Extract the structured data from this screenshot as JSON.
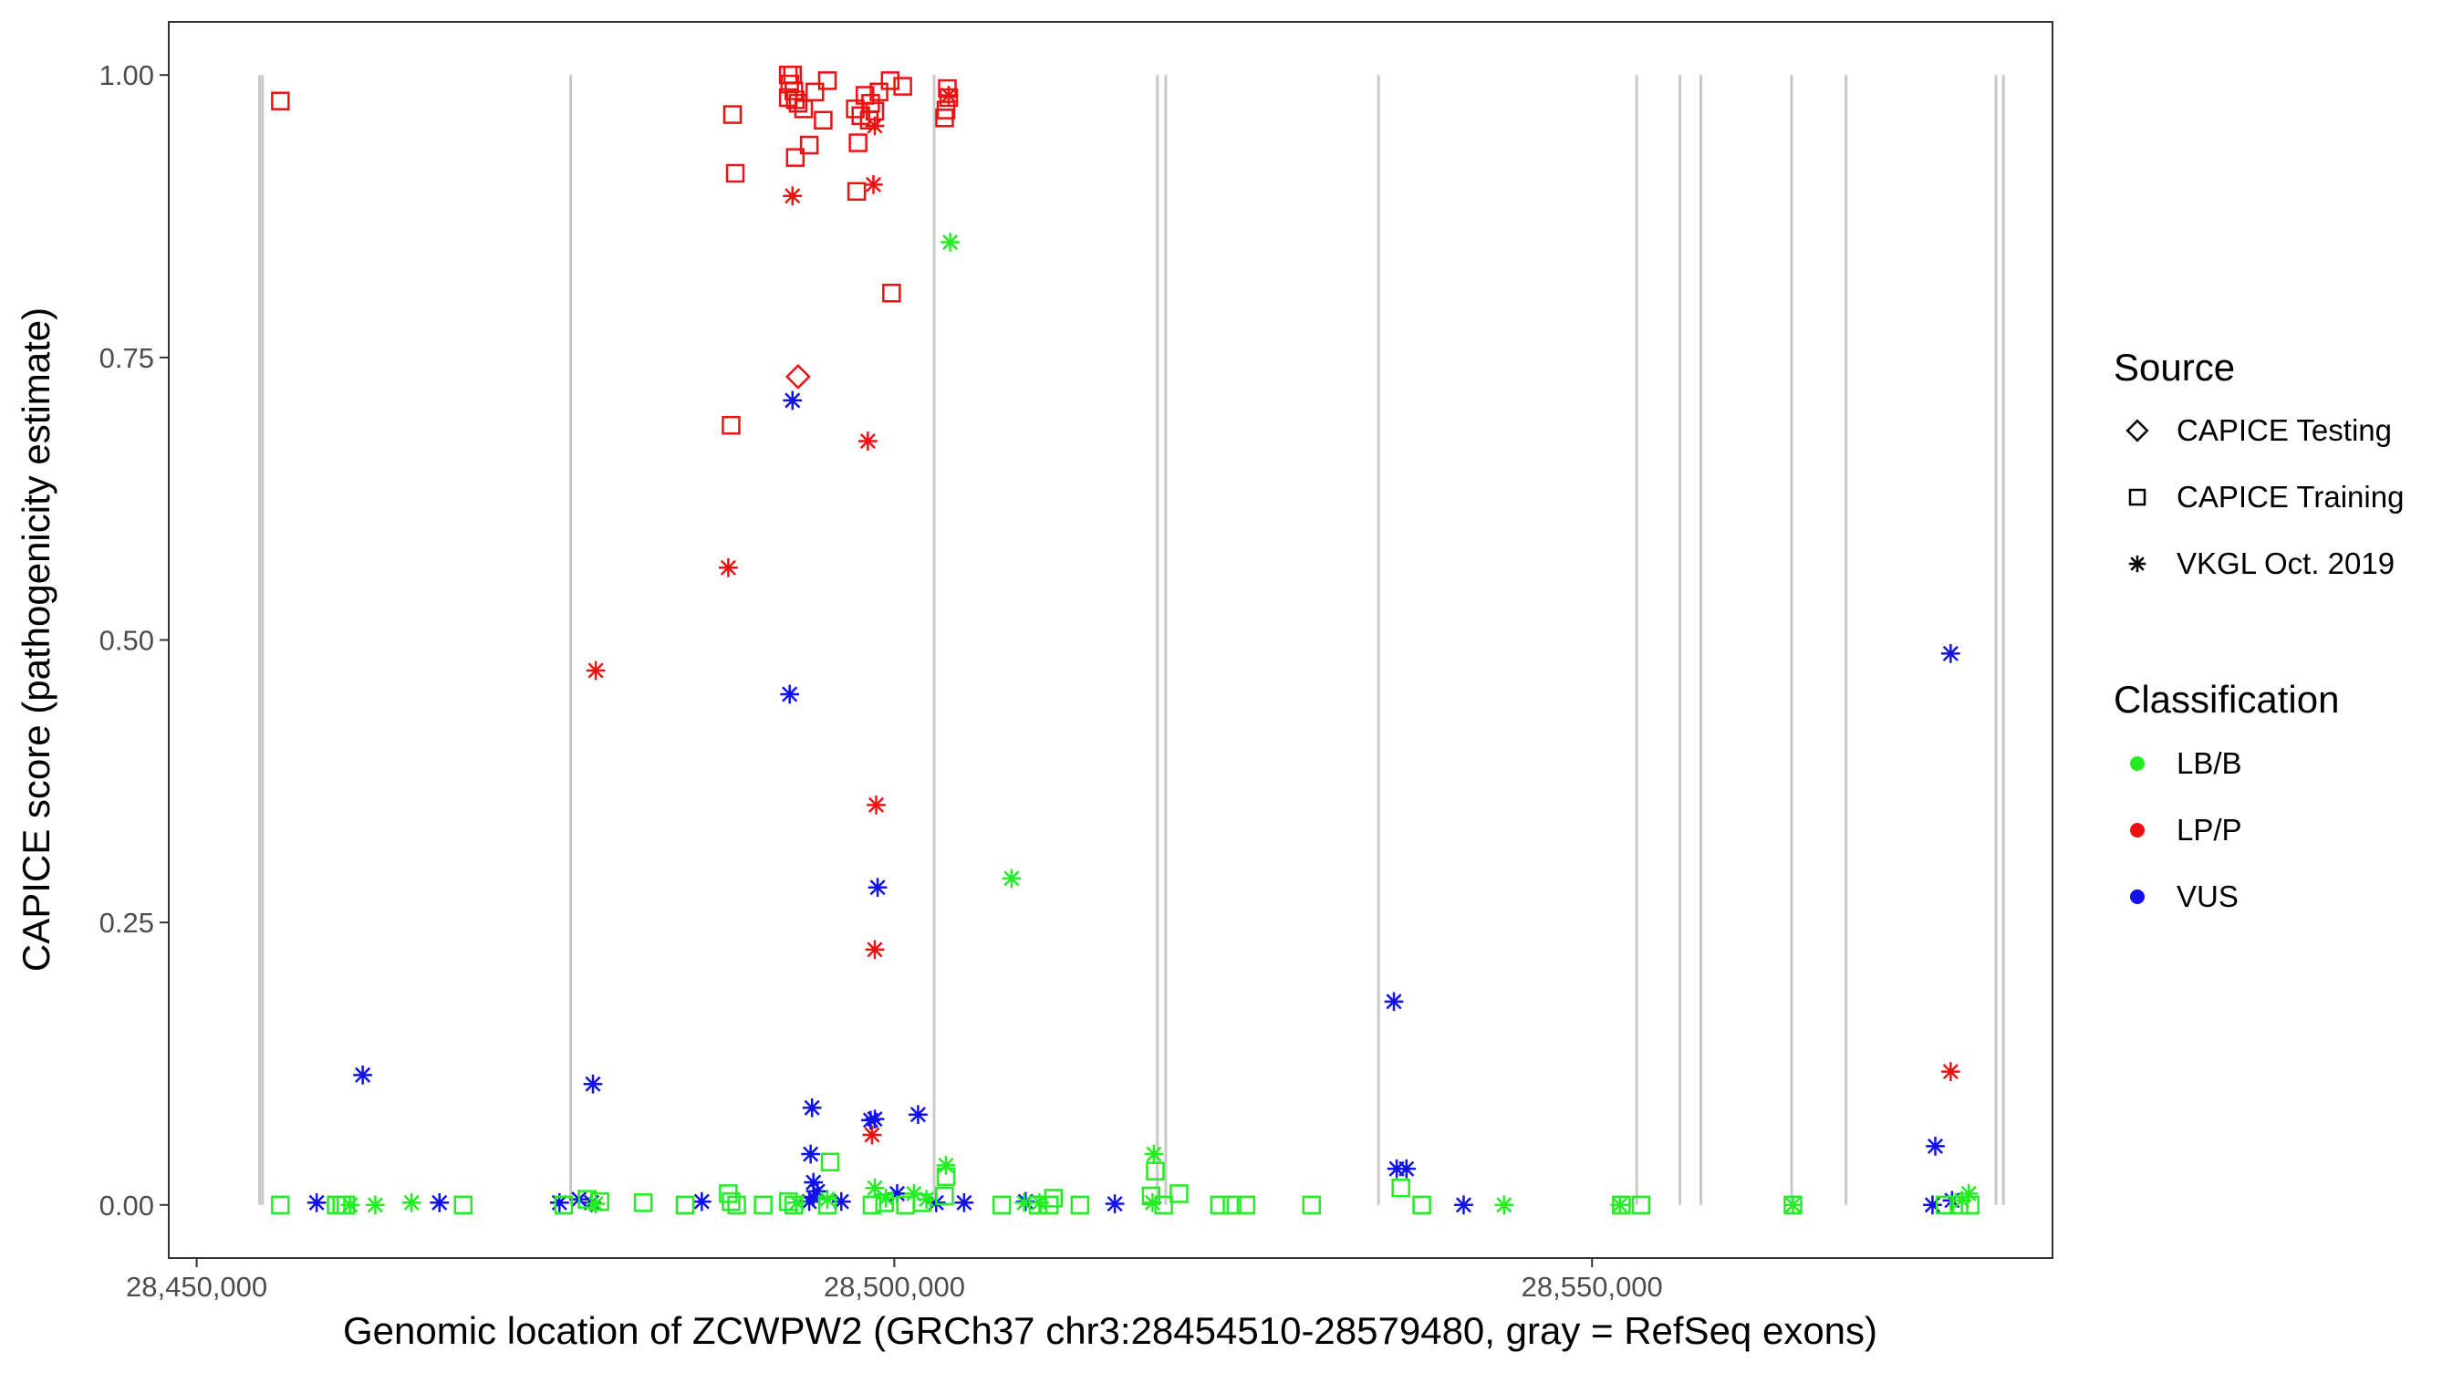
{
  "chart_data": {
    "type": "scatter",
    "xlabel": "Genomic location of ZCWPW2 (GRCh37 chr3:28454510-28579480, gray = RefSeq exons)",
    "ylabel": "CAPICE score (pathogenicity estimate)",
    "xlim": [
      28448000,
      28583000
    ],
    "ylim": [
      -0.047,
      1.047
    ],
    "x_ticks": [
      28450000,
      28500000,
      28550000
    ],
    "x_tick_labels": [
      "28,450,000",
      "28,500,000",
      "28,550,000"
    ],
    "y_ticks": [
      0,
      0.25,
      0.5,
      0.75,
      1.0
    ],
    "y_tick_labels": [
      "0.00",
      "0.25",
      "0.50",
      "0.75",
      "1.00"
    ],
    "grid": false,
    "legend_placement": "right",
    "exons": [
      28454510,
      28454720,
      28476800,
      28502850,
      28518850,
      28519450,
      28534700,
      28553200,
      28556300,
      28557800,
      28564300,
      28568200,
      28578950,
      28579480
    ],
    "legends": [
      {
        "title": "Source",
        "entries": [
          {
            "label": "CAPICE Testing",
            "shape": "diamond"
          },
          {
            "label": "CAPICE Training",
            "shape": "square"
          },
          {
            "label": "VKGL Oct. 2019",
            "shape": "asterisk"
          }
        ]
      },
      {
        "title": "Classification",
        "entries": [
          {
            "label": "LB/B",
            "color": "#22ee22"
          },
          {
            "label": "LP/P",
            "color": "#ee1111"
          },
          {
            "label": "VUS",
            "color": "#1111ee"
          }
        ]
      }
    ],
    "colors": {
      "LB/B": "#22ee22",
      "LP/P": "#ee1111",
      "VUS": "#1111ee",
      "exon": "#c8c8c8"
    },
    "series": [
      {
        "source": "CAPICE Testing",
        "classification": "LP/P",
        "shape": "diamond",
        "points": [
          [
            28493100,
            0.733
          ]
        ]
      },
      {
        "source": "CAPICE Training",
        "classification": "LP/P",
        "shape": "square",
        "points": [
          [
            28456000,
            0.977
          ],
          [
            28488400,
            0.965
          ],
          [
            28488600,
            0.913
          ],
          [
            28488300,
            0.69
          ],
          [
            28492400,
            1.0
          ],
          [
            28492700,
            1.0
          ],
          [
            28492500,
            0.992
          ],
          [
            28492800,
            0.986
          ],
          [
            28492400,
            0.98
          ],
          [
            28492900,
            0.978
          ],
          [
            28493100,
            0.975
          ],
          [
            28493500,
            0.97
          ],
          [
            28492900,
            0.927
          ],
          [
            28493900,
            0.938
          ],
          [
            28494300,
            0.985
          ],
          [
            28495200,
            0.995
          ],
          [
            28494900,
            0.96
          ],
          [
            28497200,
            0.97
          ],
          [
            28497600,
            0.964
          ],
          [
            28497400,
            0.94
          ],
          [
            28497300,
            0.897
          ],
          [
            28497900,
            0.982
          ],
          [
            28498300,
            0.975
          ],
          [
            28498600,
            0.968
          ],
          [
            28498200,
            0.96
          ],
          [
            28498900,
            0.985
          ],
          [
            28499700,
            0.995
          ],
          [
            28500600,
            0.99
          ],
          [
            28499800,
            0.807
          ],
          [
            28503800,
            0.988
          ],
          [
            28503900,
            0.98
          ],
          [
            28503600,
            0.962
          ],
          [
            28503700,
            0.969
          ]
        ]
      },
      {
        "source": "VKGL Oct. 2019",
        "classification": "LP/P",
        "shape": "asterisk",
        "points": [
          [
            28492700,
            0.893
          ],
          [
            28498500,
            0.903
          ],
          [
            28498100,
            0.676
          ],
          [
            28488100,
            0.564
          ],
          [
            28478600,
            0.473
          ],
          [
            28498700,
            0.354
          ],
          [
            28498600,
            0.226
          ],
          [
            28498400,
            0.062
          ],
          [
            28503900,
            0.982
          ],
          [
            28498600,
            0.955
          ],
          [
            28575700,
            0.118
          ]
        ]
      },
      {
        "source": "VKGL Oct. 2019",
        "classification": "VUS",
        "shape": "asterisk",
        "points": [
          [
            28492700,
            0.712
          ],
          [
            28492500,
            0.452
          ],
          [
            28498800,
            0.281
          ],
          [
            28461900,
            0.115
          ],
          [
            28478400,
            0.107
          ],
          [
            28494100,
            0.086
          ],
          [
            28501700,
            0.08
          ],
          [
            28498300,
            0.075
          ],
          [
            28498600,
            0.076
          ],
          [
            28494000,
            0.045
          ],
          [
            28494200,
            0.02
          ],
          [
            28494500,
            0.012
          ],
          [
            28494200,
            0.007
          ],
          [
            28493900,
            0.003
          ],
          [
            28535800,
            0.18
          ],
          [
            28536000,
            0.032
          ],
          [
            28536700,
            0.032
          ],
          [
            28575700,
            0.488
          ],
          [
            28574600,
            0.052
          ],
          [
            28458600,
            0.002
          ],
          [
            28467400,
            0.002
          ],
          [
            28476000,
            0.002
          ],
          [
            28477400,
            0.005
          ],
          [
            28478300,
            0.002
          ],
          [
            28486200,
            0.003
          ],
          [
            28496200,
            0.003
          ],
          [
            28500200,
            0.01
          ],
          [
            28503000,
            0.002
          ],
          [
            28505000,
            0.002
          ],
          [
            28509400,
            0.003
          ],
          [
            28515800,
            0.001
          ],
          [
            28540800,
            0.0
          ],
          [
            28574400,
            0.0
          ],
          [
            28575800,
            0.004
          ]
        ]
      },
      {
        "source": "VKGL Oct. 2019",
        "classification": "LB/B",
        "shape": "asterisk",
        "points": [
          [
            28504000,
            0.852
          ],
          [
            28508400,
            0.289
          ],
          [
            28518600,
            0.045
          ],
          [
            28503700,
            0.035
          ],
          [
            28518500,
            0.002
          ],
          [
            28462800,
            0.0
          ],
          [
            28465400,
            0.002
          ],
          [
            28478600,
            0.001
          ],
          [
            28498600,
            0.015
          ],
          [
            28501400,
            0.01
          ],
          [
            28502300,
            0.005
          ],
          [
            28509300,
            0.002
          ],
          [
            28510400,
            0.002
          ],
          [
            28543700,
            0.0
          ],
          [
            28552000,
            0.0
          ],
          [
            28564400,
            0.0
          ],
          [
            28577000,
            0.01
          ],
          [
            28576500,
            0.004
          ],
          [
            28461000,
            0.0
          ],
          [
            28493000,
            0.002
          ],
          [
            28495200,
            0.005
          ],
          [
            28499400,
            0.006
          ]
        ]
      },
      {
        "source": "CAPICE Training",
        "classification": "LB/B",
        "shape": "square",
        "points": [
          [
            28456000,
            0.0
          ],
          [
            28460000,
            0.0
          ],
          [
            28460400,
            0.0
          ],
          [
            28460700,
            0.0
          ],
          [
            28469100,
            0.0
          ],
          [
            28476300,
            0.0
          ],
          [
            28478000,
            0.005
          ],
          [
            28478900,
            0.003
          ],
          [
            28482000,
            0.002
          ],
          [
            28485000,
            0.0
          ],
          [
            28488100,
            0.01
          ],
          [
            28488300,
            0.003
          ],
          [
            28488700,
            0.0
          ],
          [
            28490600,
            0.0
          ],
          [
            28492400,
            0.003
          ],
          [
            28492800,
            0.0
          ],
          [
            28495200,
            0.0
          ],
          [
            28495400,
            0.038
          ],
          [
            28498400,
            0.0
          ],
          [
            28499300,
            0.002
          ],
          [
            28500800,
            0.0
          ],
          [
            28502000,
            0.002
          ],
          [
            28503600,
            0.008
          ],
          [
            28503700,
            0.025
          ],
          [
            28507700,
            0.0
          ],
          [
            28510300,
            0.0
          ],
          [
            28511100,
            0.0
          ],
          [
            28511400,
            0.006
          ],
          [
            28513300,
            0.0
          ],
          [
            28518400,
            0.008
          ],
          [
            28518700,
            0.03
          ],
          [
            28519300,
            0.0
          ],
          [
            28520400,
            0.01
          ],
          [
            28523300,
            0.0
          ],
          [
            28524200,
            0.0
          ],
          [
            28525200,
            0.0
          ],
          [
            28529900,
            0.0
          ],
          [
            28536300,
            0.015
          ],
          [
            28537800,
            0.0
          ],
          [
            28552100,
            0.0
          ],
          [
            28553500,
            0.0
          ],
          [
            28564400,
            0.0
          ],
          [
            28575300,
            0.0
          ],
          [
            28576300,
            0.0
          ],
          [
            28577100,
            0.0
          ]
        ]
      }
    ]
  }
}
